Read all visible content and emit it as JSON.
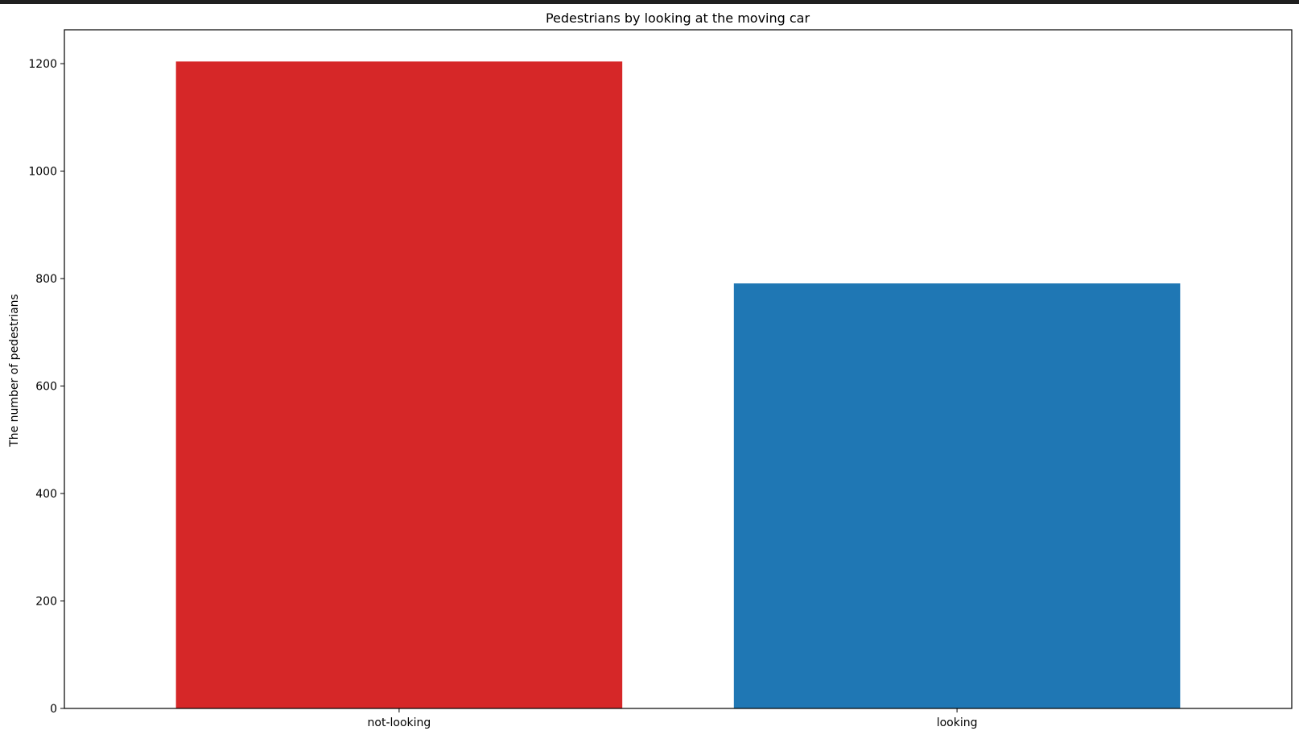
{
  "chart_data": {
    "type": "bar",
    "title": "Pedestrians by looking at the moving car",
    "xlabel": "",
    "ylabel": "The number of pedestrians",
    "categories": [
      "not-looking",
      "looking"
    ],
    "values": [
      1204,
      791
    ],
    "colors": [
      "#d62728",
      "#1f77b4"
    ],
    "ylim": [
      0,
      1263
    ],
    "yticks": [
      0,
      200,
      400,
      600,
      800,
      1000,
      1200
    ],
    "grid": false,
    "legend": "none"
  }
}
